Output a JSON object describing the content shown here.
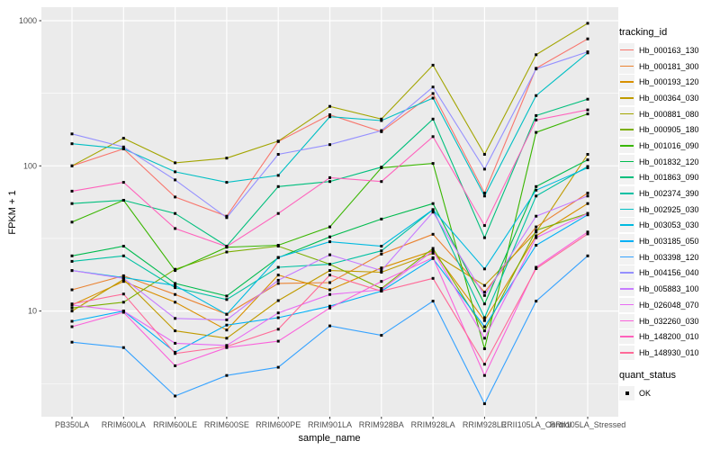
{
  "panel": {
    "bg": "#EBEBEB",
    "grid_color": "#FFFFFF",
    "tick_color": "#333333",
    "tick_label_color": "#4D4D4D",
    "point_color": "#000000"
  },
  "legend": {
    "color_title": "tracking_id",
    "shape_title": "quant_status",
    "shape_items": [
      {
        "label": "OK",
        "color": "#000000"
      }
    ],
    "key_bg": "#F2F2F2"
  },
  "chart_data": {
    "type": "line",
    "title": "",
    "xlabel": "sample_name",
    "ylabel": "FPKM + 1",
    "y_scale": "log10",
    "ylim": [
      1.8,
      1250
    ],
    "y_ticks": [
      10,
      100,
      1000
    ],
    "y_tick_labels": [
      "10",
      "100",
      "1000"
    ],
    "y_minor_ticks": [
      3.162,
      31.62,
      316.2
    ],
    "grid": true,
    "legend_position": "right",
    "point_marker": "OK",
    "categories": [
      "PB350LA",
      "RRIM600LA",
      "RRIM600LE",
      "RRIM600SE",
      "RRIM600PE",
      "RRIM901LA",
      "RRIM928BA",
      "RRIM928LA",
      "RRIM928LE",
      "RRII105LA_Control",
      "RRII105LA_Stressed"
    ],
    "series": [
      {
        "name": "Hb_000163_130",
        "color": "#F8766D",
        "values": [
          100,
          131,
          61,
          45,
          147,
          225,
          172,
          315,
          65,
          470,
          750
        ]
      },
      {
        "name": "Hb_000181_300",
        "color": "#EA8331",
        "values": [
          14,
          17.5,
          13,
          9.5,
          15.5,
          15.7,
          24.7,
          33.8,
          13.5,
          38,
          65
        ]
      },
      {
        "name": "Hb_000193_120",
        "color": "#D89000",
        "values": [
          11,
          16,
          11.5,
          7.4,
          17.7,
          14,
          19.8,
          26,
          8.6,
          33,
          55
        ]
      },
      {
        "name": "Hb_000364_030",
        "color": "#C09B00",
        "values": [
          10,
          16.5,
          7.3,
          6.5,
          11.8,
          19,
          18.5,
          25,
          15,
          35,
          120
        ]
      },
      {
        "name": "Hb_000881_080",
        "color": "#A3A500",
        "values": [
          100,
          155,
          105,
          113,
          148,
          257,
          210,
          494,
          120,
          583,
          960
        ]
      },
      {
        "name": "Hb_000905_180",
        "color": "#7CAE00",
        "values": [
          10.5,
          11.5,
          19.4,
          25.5,
          28,
          21,
          14.3,
          27,
          7.3,
          36,
          47
        ]
      },
      {
        "name": "Hb_001016_090",
        "color": "#39B600",
        "values": [
          41,
          58,
          19,
          27.5,
          28.4,
          38,
          97,
          104,
          5.5,
          170,
          228
        ]
      },
      {
        "name": "Hb_001832_120",
        "color": "#00BB4E",
        "values": [
          24,
          28,
          15.5,
          12.7,
          23.3,
          32.4,
          43,
          55,
          11.2,
          72,
          110
        ]
      },
      {
        "name": "Hb_001863_090",
        "color": "#00BF7D",
        "values": [
          55,
          58,
          47,
          28,
          72,
          78,
          98,
          210,
          32,
          222,
          288
        ]
      },
      {
        "name": "Hb_002374_390",
        "color": "#00C1A3",
        "values": [
          22,
          24,
          14.5,
          12,
          20,
          21,
          26,
          50,
          9,
          62,
          99
        ]
      },
      {
        "name": "Hb_002925_030",
        "color": "#00BFC4",
        "values": [
          142,
          131,
          91,
          77,
          86,
          218,
          205,
          293,
          62,
          305,
          600
        ]
      },
      {
        "name": "Hb_003053_030",
        "color": "#00BAE0",
        "values": [
          19,
          17,
          15,
          9.5,
          23.4,
          30,
          28,
          50,
          19.5,
          68,
          97
        ]
      },
      {
        "name": "Hb_003185_050",
        "color": "#00B0F6",
        "values": [
          8.5,
          10,
          5.2,
          8,
          9,
          10.8,
          13.7,
          23,
          7.8,
          28.4,
          46
        ]
      },
      {
        "name": "Hb_003398_120",
        "color": "#35A2FF",
        "values": [
          6.1,
          5.6,
          2.6,
          3.6,
          4.1,
          7.9,
          6.8,
          11.7,
          2.3,
          11.7,
          24
        ]
      },
      {
        "name": "Hb_004156_040",
        "color": "#9590FF",
        "values": [
          166,
          135,
          80,
          44,
          120,
          140,
          175,
          349,
          95,
          465,
          610
        ]
      },
      {
        "name": "Hb_005883_100",
        "color": "#C77CFF",
        "values": [
          19,
          16.8,
          8.9,
          8.7,
          16.3,
          24.4,
          19,
          48,
          12.8,
          45,
          62
        ]
      },
      {
        "name": "Hb_026048_070",
        "color": "#E76BF3",
        "values": [
          11,
          10,
          6,
          5.8,
          9.7,
          13,
          14,
          26,
          6.5,
          32,
          47
        ]
      },
      {
        "name": "Hb_032260_030",
        "color": "#FA62DB",
        "values": [
          7.8,
          9.8,
          4.2,
          5.6,
          6.2,
          10.5,
          16,
          23.3,
          3.6,
          20,
          35
        ]
      },
      {
        "name": "Hb_148200_010",
        "color": "#FF62BC",
        "values": [
          67,
          77,
          37,
          27.8,
          47,
          83,
          78,
          159,
          38.8,
          207,
          243
        ]
      },
      {
        "name": "Hb_148930_010",
        "color": "#FF6A98",
        "values": [
          11.2,
          13.1,
          5.1,
          5.7,
          7.5,
          17.7,
          13.7,
          16.8,
          4.3,
          19.6,
          34
        ]
      }
    ]
  }
}
